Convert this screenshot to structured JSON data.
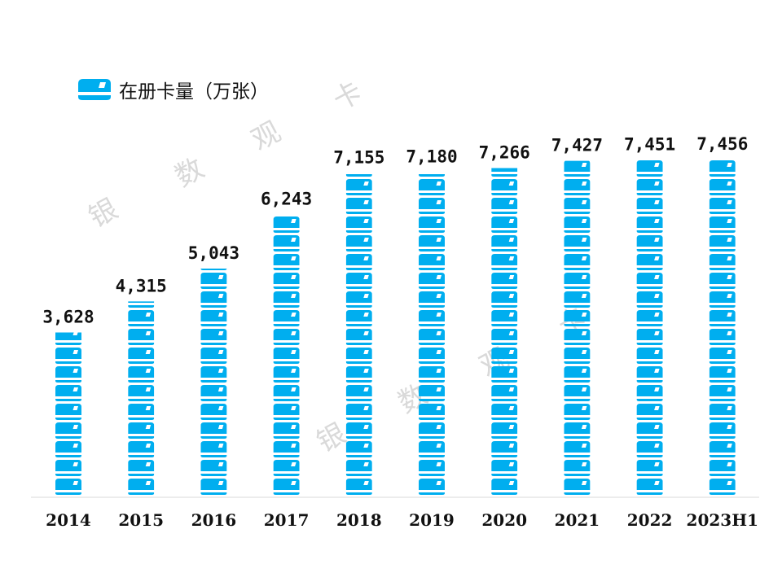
{
  "chart_data": {
    "type": "bar",
    "style": "pictorial-stacked-card-icons",
    "categories": [
      "2014",
      "2015",
      "2016",
      "2017",
      "2018",
      "2019",
      "2020",
      "2021",
      "2022",
      "2023H1"
    ],
    "series": [
      {
        "name": "在册卡量（万张）",
        "values": [
          3628,
          4315,
          5043,
          6243,
          7155,
          7180,
          7266,
          7427,
          7451,
          7456
        ]
      }
    ],
    "data_labels": [
      "3,628",
      "4,315",
      "5,043",
      "6,243",
      "7,155",
      "7,180",
      "7,266",
      "7,427",
      "7,451",
      "7,456"
    ],
    "legend_position": "top-left",
    "grid": false,
    "ylim": [
      0,
      7456
    ],
    "bar_color": "#00AEEF",
    "watermark": "银 数 观 卡"
  }
}
